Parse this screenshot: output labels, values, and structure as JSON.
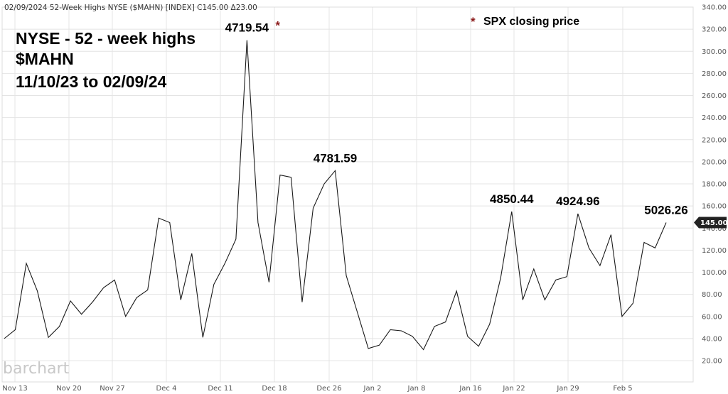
{
  "header": "02/09/2024 52-Week Highs NYSE ($MAHN) [INDEX] C145.00 Δ23.00",
  "title_lines": [
    "NYSE - 52 - week highs",
    "$MAHN",
    "11/10/23 to 02/09/24"
  ],
  "legend_note": {
    "star": "*",
    "text": "SPX closing price"
  },
  "watermark": "barchart",
  "last_value_badge": "145.00",
  "colors": {
    "line": "#1a1a1a",
    "grid": "#e4e4e4",
    "star": "#8b1a1a",
    "badge": "#222222"
  },
  "chart_data": {
    "type": "line",
    "x_ticks": [
      "Nov 13",
      "Nov 20",
      "Nov 27",
      "Dec 4",
      "Dec 11",
      "Dec 18",
      "Dec 26",
      "Jan 2",
      "Jan 8",
      "Jan 16",
      "Jan 22",
      "Jan 29",
      "Feb 5"
    ],
    "y_ticks": [
      "20.00",
      "40.00",
      "60.00",
      "80.00",
      "100.00",
      "120.00",
      "140.00",
      "160.00",
      "180.00",
      "200.00",
      "220.00",
      "240.00",
      "260.00",
      "280.00",
      "300.00",
      "320.00",
      "340.00"
    ],
    "ylim": [
      20,
      340
    ],
    "grid": true,
    "series": [
      {
        "values": [
          40,
          48,
          108,
          83,
          41,
          51,
          74,
          62,
          73,
          86,
          93,
          60,
          77,
          84,
          149,
          145,
          75,
          117,
          41,
          89,
          108,
          130,
          310,
          145,
          91,
          188,
          186,
          73,
          158,
          180,
          192,
          97,
          64,
          31,
          34,
          48,
          47,
          42,
          30,
          51,
          55,
          83,
          42,
          33,
          53,
          95,
          155,
          75,
          103,
          75,
          93,
          96,
          153,
          122,
          106,
          134,
          60,
          72,
          127,
          122,
          145
        ]
      }
    ],
    "annotations": [
      {
        "label": "4719.54",
        "index": 22,
        "star": "*"
      },
      {
        "label": "4781.59",
        "index": 30
      },
      {
        "label": "4850.44",
        "index": 46
      },
      {
        "label": "4924.96",
        "index": 52
      },
      {
        "label": "5026.26",
        "index": 60
      }
    ]
  }
}
